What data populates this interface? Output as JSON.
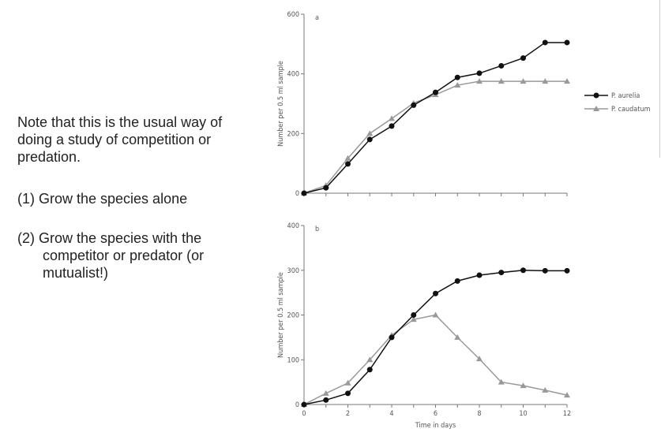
{
  "notes": {
    "intro": "Note that this is the usual way of doing a study of competition or predation.",
    "step1": "(1) Grow the species alone",
    "step2_line1": "(2) Grow the species with the",
    "step2_rest": "competitor or predator (or mutualist!)"
  },
  "colors": {
    "aurelia": "#111111",
    "caudatum": "#999999",
    "axis": "#777777"
  },
  "chart_data": [
    {
      "type": "line",
      "panel_label": "a",
      "ylabel": "Number per 0.5 ml sample",
      "xlabel": "",
      "ylim": [
        0,
        600
      ],
      "yticks": [
        0,
        200,
        400,
        600
      ],
      "xlim": [
        0,
        12
      ],
      "x": [
        0,
        1,
        2,
        3,
        4,
        5,
        6,
        7,
        8,
        9,
        10,
        11,
        12
      ],
      "legend": "right",
      "series": [
        {
          "name": "P. aurelia",
          "marker": "circle",
          "values": [
            0,
            18,
            98,
            180,
            225,
            295,
            338,
            388,
            402,
            427,
            453,
            505,
            505
          ]
        },
        {
          "name": "P. caudatum",
          "marker": "triangle",
          "values": [
            0,
            26,
            117,
            200,
            250,
            302,
            330,
            362,
            375,
            375,
            375,
            375,
            375
          ]
        }
      ]
    },
    {
      "type": "line",
      "panel_label": "b",
      "ylabel": "Number per 0.5 ml sample",
      "xlabel": "Time in days",
      "ylim": [
        0,
        400
      ],
      "yticks": [
        0,
        100,
        200,
        300,
        400
      ],
      "xlim": [
        0,
        12
      ],
      "xticks": [
        0,
        2,
        4,
        6,
        8,
        10,
        12
      ],
      "x": [
        0,
        1,
        2,
        3,
        4,
        5,
        6,
        7,
        8,
        9,
        10,
        11,
        12
      ],
      "series": [
        {
          "name": "P. aurelia",
          "marker": "circle",
          "values": [
            0,
            10,
            25,
            78,
            150,
            200,
            248,
            276,
            289,
            295,
            300,
            299,
            299
          ]
        },
        {
          "name": "P. caudatum",
          "marker": "triangle",
          "values": [
            0,
            25,
            48,
            100,
            155,
            190,
            200,
            150,
            102,
            50,
            42,
            32,
            21
          ]
        }
      ]
    }
  ]
}
